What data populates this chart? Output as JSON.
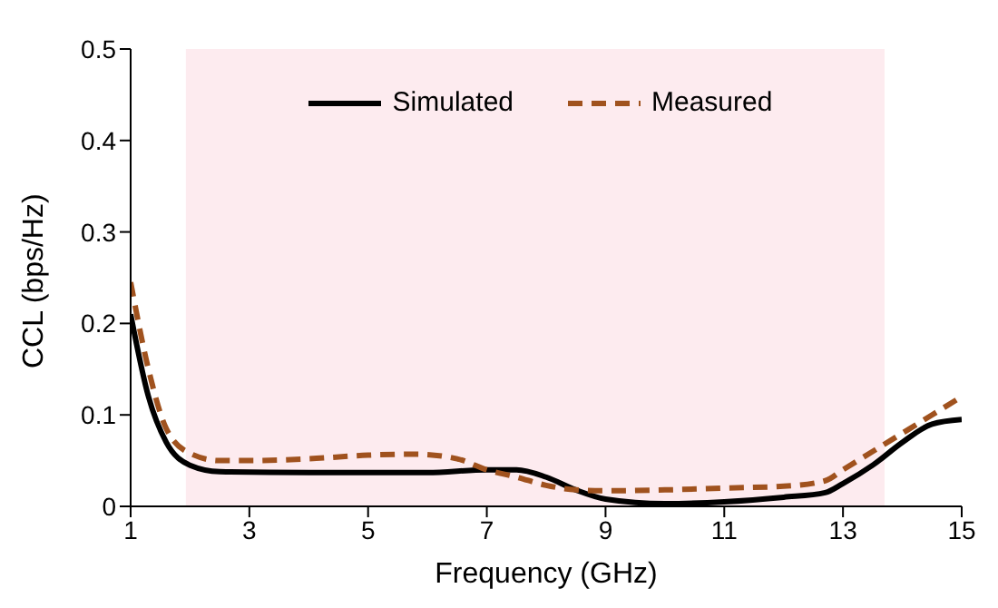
{
  "chart_data": {
    "type": "line",
    "xlabel": "Frequency (GHz)",
    "ylabel": "CCL (bps/Hz)",
    "xlim": [
      1,
      15
    ],
    "xticks": [
      1,
      3,
      5,
      7,
      9,
      11,
      13,
      15
    ],
    "ylim": [
      0,
      0.5
    ],
    "yticks": [
      0,
      0.1,
      0.2,
      0.3,
      0.4,
      0.5
    ],
    "grid": false,
    "legend": "top",
    "marker": "none",
    "bands": [
      {
        "axis": "x",
        "from": 1.93,
        "to": 13.7,
        "color": "#fdebef"
      }
    ],
    "series": [
      {
        "name": "Simulated",
        "color": "#000000",
        "line_style": "solid",
        "x": [
          1,
          1.3,
          1.6,
          2,
          2.5,
          4,
          6,
          7,
          7.5,
          8,
          8.5,
          9,
          10,
          11,
          12,
          12.7,
          13,
          13.5,
          14,
          14.5,
          15
        ],
        "values": [
          0.21,
          0.12,
          0.07,
          0.045,
          0.038,
          0.037,
          0.037,
          0.04,
          0.04,
          0.032,
          0.018,
          0.008,
          0.003,
          0.005,
          0.01,
          0.015,
          0.025,
          0.045,
          0.07,
          0.09,
          0.095
        ]
      },
      {
        "name": "Measured",
        "color": "#a0521e",
        "line_style": "dashed",
        "x": [
          1,
          1.3,
          1.6,
          2,
          2.5,
          3,
          4,
          5,
          5.8,
          6.5,
          7,
          7.5,
          8,
          8.5,
          9,
          10,
          11,
          12,
          12.7,
          13,
          13.5,
          14,
          14.5,
          15
        ],
        "values": [
          0.245,
          0.15,
          0.085,
          0.058,
          0.05,
          0.05,
          0.052,
          0.056,
          0.057,
          0.052,
          0.04,
          0.032,
          0.023,
          0.018,
          0.017,
          0.018,
          0.02,
          0.022,
          0.028,
          0.04,
          0.06,
          0.08,
          0.1,
          0.12
        ]
      }
    ]
  }
}
